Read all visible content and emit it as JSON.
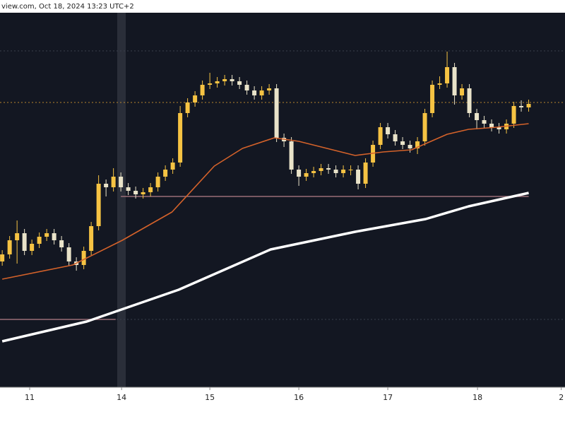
{
  "header": {
    "text": "view.com, Oct 18, 2024 13:23 UTC+2"
  },
  "chart_data": {
    "type": "candlestick",
    "xlim": [
      -0.3,
      75.9
    ],
    "ylim": [
      0,
      530
    ],
    "xticks": [
      {
        "value": 3.7,
        "label": "11"
      },
      {
        "value": 16.1,
        "label": "14"
      },
      {
        "value": 28,
        "label": "15"
      },
      {
        "value": 40,
        "label": "16"
      },
      {
        "value": 52,
        "label": "17"
      },
      {
        "value": 64.1,
        "label": "18"
      },
      {
        "value": 75.4,
        "label": "2"
      }
    ],
    "up_color": "#f6c343",
    "down_color": "#e9e3c9",
    "open": [
      178,
      188,
      208,
      218,
      193,
      203,
      213,
      218,
      208,
      198,
      178,
      173,
      193,
      228,
      288,
      283,
      298,
      283,
      278,
      273,
      276,
      283,
      298,
      308,
      318,
      388,
      403,
      413,
      428,
      430,
      433,
      436,
      433,
      428,
      420,
      413,
      420,
      423,
      353,
      348,
      308,
      298,
      303,
      306,
      310,
      308,
      303,
      308,
      308,
      288,
      318,
      343,
      368,
      358,
      348,
      343,
      338,
      348,
      388,
      428,
      430,
      453,
      413,
      423,
      388,
      378,
      373,
      368,
      365,
      373,
      398,
      396
    ],
    "high": [
      194,
      214,
      236,
      224,
      209,
      219,
      224,
      224,
      214,
      204,
      184,
      199,
      234,
      300,
      294,
      310,
      304,
      289,
      284,
      282,
      289,
      304,
      314,
      324,
      398,
      409,
      419,
      434,
      445,
      439,
      442,
      442,
      439,
      434,
      426,
      426,
      429,
      429,
      359,
      354,
      314,
      309,
      312,
      316,
      316,
      314,
      314,
      314,
      314,
      324,
      349,
      374,
      374,
      364,
      354,
      349,
      354,
      394,
      434,
      440,
      475,
      459,
      429,
      429,
      394,
      384,
      379,
      374,
      379,
      404,
      406,
      407
    ],
    "low": [
      172,
      182,
      175,
      187,
      187,
      197,
      207,
      202,
      192,
      172,
      165,
      167,
      187,
      222,
      270,
      277,
      277,
      272,
      267,
      267,
      270,
      277,
      292,
      302,
      312,
      382,
      397,
      407,
      422,
      424,
      427,
      427,
      422,
      414,
      407,
      407,
      414,
      347,
      340,
      302,
      285,
      292,
      297,
      300,
      302,
      297,
      297,
      300,
      280,
      282,
      312,
      337,
      352,
      342,
      337,
      332,
      330,
      342,
      382,
      422,
      424,
      400,
      407,
      382,
      365,
      367,
      362,
      359,
      359,
      367,
      390,
      390
    ],
    "close": [
      188,
      208,
      218,
      193,
      203,
      213,
      218,
      208,
      198,
      178,
      173,
      193,
      228,
      288,
      283,
      298,
      283,
      278,
      273,
      276,
      283,
      298,
      308,
      318,
      388,
      403,
      413,
      428,
      430,
      433,
      436,
      433,
      428,
      420,
      413,
      420,
      423,
      353,
      348,
      308,
      298,
      303,
      306,
      310,
      308,
      303,
      308,
      308,
      288,
      318,
      343,
      368,
      358,
      348,
      343,
      338,
      348,
      388,
      428,
      430,
      453,
      413,
      423,
      388,
      378,
      373,
      368,
      365,
      373,
      398,
      396,
      401
    ],
    "lines": [
      {
        "color": "#d4622a",
        "width": 1.6,
        "x": [
          0,
          9.5,
          16.2,
          22.9,
          28.6,
          32.4,
          36.7,
          40,
          47.6,
          51.4,
          55.2,
          60,
          62.9,
          66.7,
          71
        ],
        "values": [
          153,
          173,
          208,
          248,
          313,
          338,
          353,
          348,
          328,
          333,
          336,
          358,
          365,
          368,
          373
        ]
      },
      {
        "color": "#ffffff",
        "width": 3.5,
        "x": [
          0,
          11.4,
          23.8,
          36.2,
          47.6,
          57.1,
          62.9,
          71
        ],
        "values": [
          65,
          93,
          138,
          195,
          220,
          238,
          256,
          275
        ]
      }
    ],
    "levels": [
      {
        "value": 270,
        "from": 16,
        "to": 71,
        "color": "#9a6f78"
      },
      {
        "value": 96,
        "from": -0.3,
        "to": 15.3,
        "color": "#9a6f78"
      }
    ],
    "dotted": [
      {
        "value": 476,
        "color": "#3a3f4c"
      },
      {
        "value": 403,
        "color": "#b8862e"
      },
      {
        "value": 96,
        "color": "#3a3f4c"
      }
    ]
  }
}
